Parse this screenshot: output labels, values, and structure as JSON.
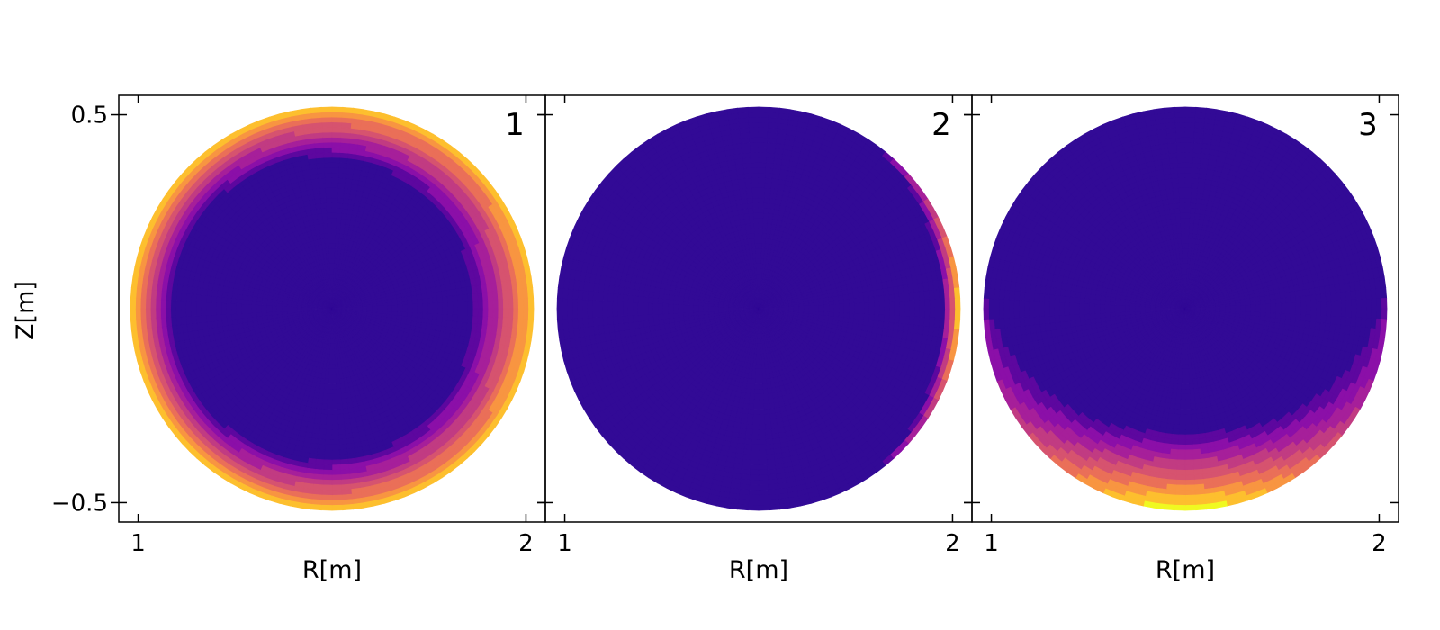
{
  "figure": {
    "ylabel": "Z[m]"
  },
  "colors": {
    "scale": [
      "#320a96",
      "#5d079f",
      "#8b0fa8",
      "#a61f9a",
      "#c13b82",
      "#d6536f",
      "#ea6f58",
      "#f89541",
      "#fdbf2e",
      "#f0f921"
    ],
    "axis": "#000000",
    "background": "#ffffff"
  },
  "chart_data": [
    {
      "type": "heatmap",
      "panel_label": "1",
      "xlabel": "R[m]",
      "ylabel": "Z[m]",
      "x_ticks": [
        1,
        2
      ],
      "x_tick_labels": [
        "1",
        "2"
      ],
      "y_ticks": [
        0.5,
        -0.5
      ],
      "y_tick_labels": [
        "0.5",
        "−0.5"
      ],
      "xlim": [
        0.95,
        2.05
      ],
      "ylim": [
        -0.55,
        0.55
      ],
      "plasma_center": [
        1.5,
        0.0
      ],
      "plasma_radius": 0.52,
      "pattern": "edge-ring",
      "levels": [
        0,
        1,
        2,
        3,
        4,
        5,
        6,
        7,
        8,
        9
      ],
      "grid": false
    },
    {
      "type": "heatmap",
      "panel_label": "2",
      "xlabel": "R[m]",
      "ylabel": "",
      "x_ticks": [
        1,
        2
      ],
      "x_tick_labels": [
        "1",
        "2"
      ],
      "y_ticks": [
        0.5,
        -0.5
      ],
      "y_tick_labels": [
        "",
        ""
      ],
      "xlim": [
        0.95,
        2.05
      ],
      "ylim": [
        -0.55,
        0.55
      ],
      "plasma_center": [
        1.5,
        0.0
      ],
      "plasma_radius": 0.52,
      "pattern": "outboard-edge",
      "levels": [
        0,
        1,
        2,
        3,
        4,
        5,
        6,
        7,
        8,
        9
      ],
      "grid": false
    },
    {
      "type": "heatmap",
      "panel_label": "3",
      "xlabel": "R[m]",
      "ylabel": "",
      "x_ticks": [
        1,
        2
      ],
      "x_tick_labels": [
        "1",
        "2"
      ],
      "y_ticks": [
        0.5,
        -0.5
      ],
      "y_tick_labels": [
        "",
        ""
      ],
      "xlim": [
        0.95,
        2.05
      ],
      "ylim": [
        -0.55,
        0.55
      ],
      "plasma_center": [
        1.5,
        0.0
      ],
      "plasma_radius": 0.52,
      "pattern": "bottom-edge",
      "levels": [
        0,
        1,
        2,
        3,
        4,
        5,
        6,
        7,
        8,
        9
      ],
      "grid": false
    }
  ]
}
